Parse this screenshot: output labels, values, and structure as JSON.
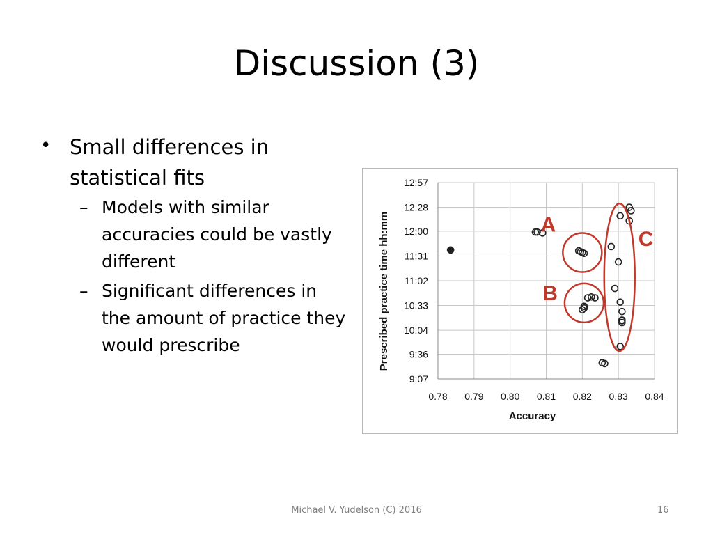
{
  "slide": {
    "title": "Discussion (3)",
    "bullets": [
      {
        "text": "Small differences in statistical fits",
        "sub": [
          {
            "text": "Models with similar accuracies could be vastly different"
          },
          {
            "text": "Significant differences in the amount of practice they would prescribe"
          }
        ]
      }
    ],
    "bullet_glyph": "•",
    "sub_glyph": "–",
    "footer": "Michael V. Yudelson (C) 2016",
    "page_number": "16"
  },
  "chart_data": {
    "type": "scatter",
    "xlabel": "Accuracy",
    "ylabel": "Prescribed practice time hh:mm",
    "x_ticks": [
      "0.78",
      "0.79",
      "0.80",
      "0.81",
      "0.82",
      "0.83",
      "0.84"
    ],
    "y_ticks": [
      "9:07",
      "9:36",
      "10:04",
      "10:33",
      "11:02",
      "11:31",
      "12:00",
      "12:28",
      "12:57"
    ],
    "xlim": [
      0.78,
      0.84
    ],
    "ylim": [
      "9:07",
      "12:57"
    ],
    "grid": true,
    "series": [
      {
        "marker": "open-circle",
        "points": [
          {
            "x": 0.807,
            "y": "11:59"
          },
          {
            "x": 0.8075,
            "y": "11:59"
          },
          {
            "x": 0.809,
            "y": "11:58"
          },
          {
            "x": 0.819,
            "y": "11:37"
          },
          {
            "x": 0.8195,
            "y": "11:36"
          },
          {
            "x": 0.82,
            "y": "11:35"
          },
          {
            "x": 0.8205,
            "y": "11:34"
          },
          {
            "x": 0.8215,
            "y": "10:42"
          },
          {
            "x": 0.8225,
            "y": "10:43"
          },
          {
            "x": 0.8235,
            "y": "10:42"
          },
          {
            "x": 0.8205,
            "y": "10:32"
          },
          {
            "x": 0.82,
            "y": "10:28"
          },
          {
            "x": 0.8205,
            "y": "10:30"
          },
          {
            "x": 0.828,
            "y": "11:42"
          },
          {
            "x": 0.8305,
            "y": "12:18"
          },
          {
            "x": 0.833,
            "y": "12:28"
          },
          {
            "x": 0.8335,
            "y": "12:24"
          },
          {
            "x": 0.833,
            "y": "12:12"
          },
          {
            "x": 0.83,
            "y": "11:24"
          },
          {
            "x": 0.829,
            "y": "10:53"
          },
          {
            "x": 0.8305,
            "y": "10:37"
          },
          {
            "x": 0.831,
            "y": "10:26"
          },
          {
            "x": 0.831,
            "y": "10:16"
          },
          {
            "x": 0.831,
            "y": "10:13"
          },
          {
            "x": 0.831,
            "y": "10:15"
          },
          {
            "x": 0.8305,
            "y": "9:45"
          },
          {
            "x": 0.8255,
            "y": "9:26"
          },
          {
            "x": 0.8262,
            "y": "9:25"
          }
        ]
      },
      {
        "marker": "filled-circle",
        "points": [
          {
            "x": 0.7835,
            "y": "11:38"
          }
        ]
      }
    ],
    "annotations": [
      {
        "label": "A",
        "color": "#c0392b",
        "shape": "circle",
        "center": {
          "x": 0.82,
          "y": "11:35"
        }
      },
      {
        "label": "B",
        "color": "#c0392b",
        "shape": "circle",
        "center": {
          "x": 0.8205,
          "y": "10:36"
        }
      },
      {
        "label": "C",
        "color": "#c0392b",
        "shape": "ellipse",
        "center": {
          "x": 0.8303,
          "y": "11:06"
        }
      }
    ],
    "colors": {
      "points": "#222222",
      "annotation": "#c0392b",
      "grid": "#c8c8c8"
    }
  }
}
